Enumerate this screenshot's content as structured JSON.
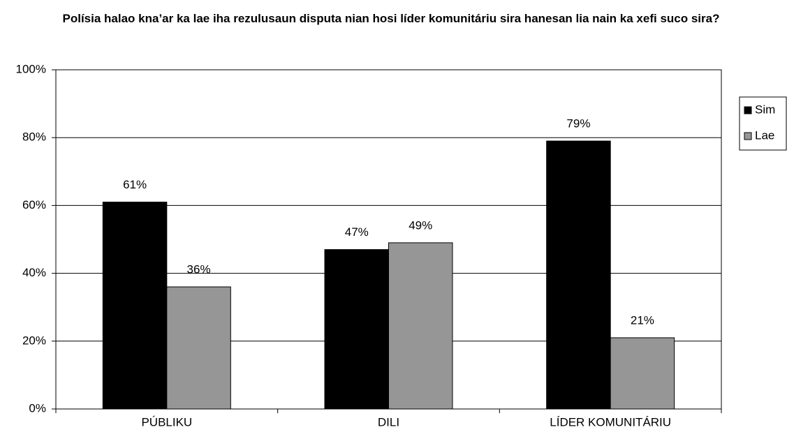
{
  "chart_data": {
    "type": "bar",
    "title": "Polísia halao kna’ar ka lae iha rezulusaun disputa nian hosi líder komunitáriu sira hanesan lia nain ka xefi suco sira?",
    "categories": [
      "PÚBLIKU",
      "DILI",
      "LÍDER KOMUNITÁRIU"
    ],
    "series": [
      {
        "name": "Sim",
        "color": "#000000",
        "values": [
          61,
          47,
          79
        ],
        "value_labels": [
          "61%",
          "47%",
          "79%"
        ]
      },
      {
        "name": "Lae",
        "color": "#969696",
        "values": [
          36,
          49,
          21
        ],
        "value_labels": [
          "36%",
          "49%",
          "21%"
        ]
      }
    ],
    "ylim": [
      0,
      100
    ],
    "yticks": [
      {
        "value": 0,
        "label": "0%"
      },
      {
        "value": 20,
        "label": "20%"
      },
      {
        "value": 40,
        "label": "40%"
      },
      {
        "value": 60,
        "label": "60%"
      },
      {
        "value": 80,
        "label": "80%"
      },
      {
        "value": 100,
        "label": "100%"
      }
    ],
    "grid": true,
    "legend": "right"
  }
}
